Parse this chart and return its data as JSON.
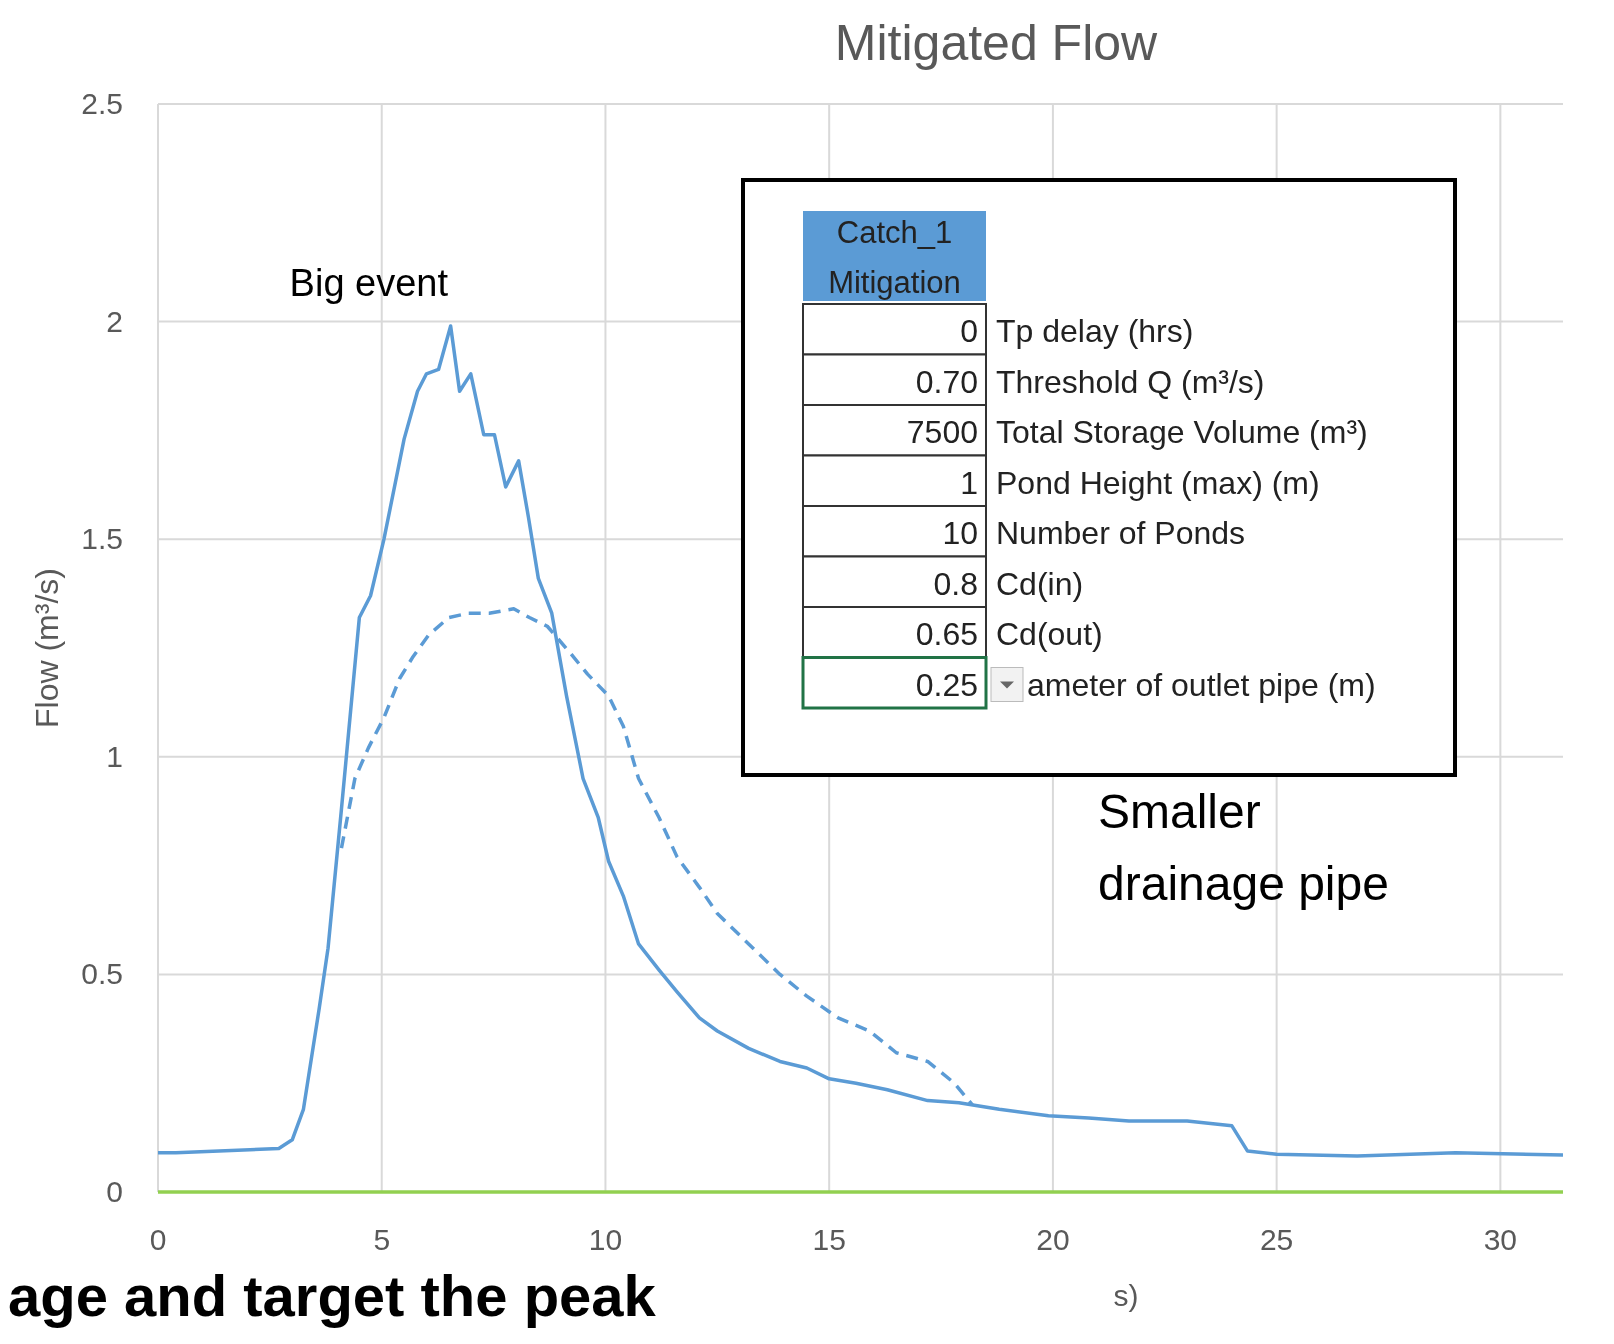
{
  "chart_data": {
    "type": "line",
    "title": "Mitigated Flow",
    "xlabel": "s)",
    "ylabel": "Flow (m³/s)",
    "xlim": [
      0,
      31.4
    ],
    "ylim": [
      0,
      2.5
    ],
    "xticks": [
      0,
      5,
      10,
      15,
      20,
      25,
      30
    ],
    "yticks": [
      0,
      0.5,
      1,
      1.5,
      2,
      2.5
    ],
    "grid": true,
    "marker": "none",
    "line_style": "solid",
    "series": [
      {
        "color": "#5b9bd5",
        "x": [
          0,
          0.4,
          2.7,
          3.0,
          3.25,
          3.6,
          3.8,
          4.1,
          4.5,
          4.75,
          5.05,
          5.5,
          5.8,
          6.0,
          6.27,
          6.54,
          6.74,
          6.99,
          7.28,
          7.52,
          7.77,
          8.06,
          8.28,
          8.5,
          8.8,
          9.13,
          9.5,
          9.84,
          10.07,
          10.4,
          10.74,
          11.2,
          11.6,
          12.1,
          12.5,
          13.2,
          13.9,
          14.5,
          15.0,
          15.6,
          16.3,
          17.2,
          17.9,
          18.8,
          19.9,
          20.8,
          21.7,
          23.0,
          24.0,
          24.35,
          25.0,
          26.8,
          29.0,
          31.4
        ],
        "values": [
          0.09,
          0.09,
          0.1,
          0.12,
          0.19,
          0.42,
          0.56,
          0.88,
          1.32,
          1.37,
          1.5,
          1.73,
          1.84,
          1.88,
          1.89,
          1.99,
          1.84,
          1.88,
          1.74,
          1.74,
          1.62,
          1.68,
          1.55,
          1.41,
          1.33,
          1.14,
          0.95,
          0.86,
          0.76,
          0.68,
          0.57,
          0.51,
          0.46,
          0.4,
          0.37,
          0.33,
          0.3,
          0.285,
          0.26,
          0.25,
          0.235,
          0.21,
          0.205,
          0.19,
          0.175,
          0.17,
          0.163,
          0.163,
          0.152,
          0.094,
          0.087,
          0.083,
          0.09,
          0.085
        ]
      },
      {
        "color": "#5b9bd5",
        "line_style": "dashed",
        "x": [
          4.1,
          4.4,
          4.7,
          5.05,
          5.4,
          5.7,
          6.05,
          6.5,
          6.94,
          7.4,
          7.95,
          8.3,
          8.7,
          9.2,
          9.6,
          10.07,
          10.4,
          10.74,
          11.2,
          11.6,
          12.1,
          12.5,
          13.2,
          13.9,
          14.5,
          15.2,
          15.9,
          16.5,
          17.2,
          17.8,
          18.2
        ],
        "values": [
          0.79,
          0.95,
          1.02,
          1.09,
          1.18,
          1.23,
          1.28,
          1.32,
          1.33,
          1.33,
          1.34,
          1.32,
          1.3,
          1.24,
          1.19,
          1.14,
          1.07,
          0.95,
          0.86,
          0.77,
          0.7,
          0.64,
          0.57,
          0.5,
          0.45,
          0.4,
          0.37,
          0.32,
          0.3,
          0.25,
          0.2
        ]
      },
      {
        "color": "#92d050",
        "x": [
          0,
          31.4
        ],
        "values": [
          0,
          0
        ]
      }
    ],
    "annotations": [
      {
        "text": "Big event",
        "x": 6.5,
        "y": 1.99
      },
      "Smaller drainage pipe",
      "Catch_1 Mitigation",
      "0",
      "Tp delay (hrs)",
      "0.70",
      "Threshold Q (m³/s)",
      "7500",
      "Total Storage Volume (m³)",
      "1",
      "Pond Height (max) (m)",
      "10",
      "Number of Ponds",
      "0.8",
      "Cd(in)",
      "0.65",
      "Cd(out)",
      "0.25",
      "ameter of outlet pipe (m)",
      "age and target the peak"
    ]
  }
}
